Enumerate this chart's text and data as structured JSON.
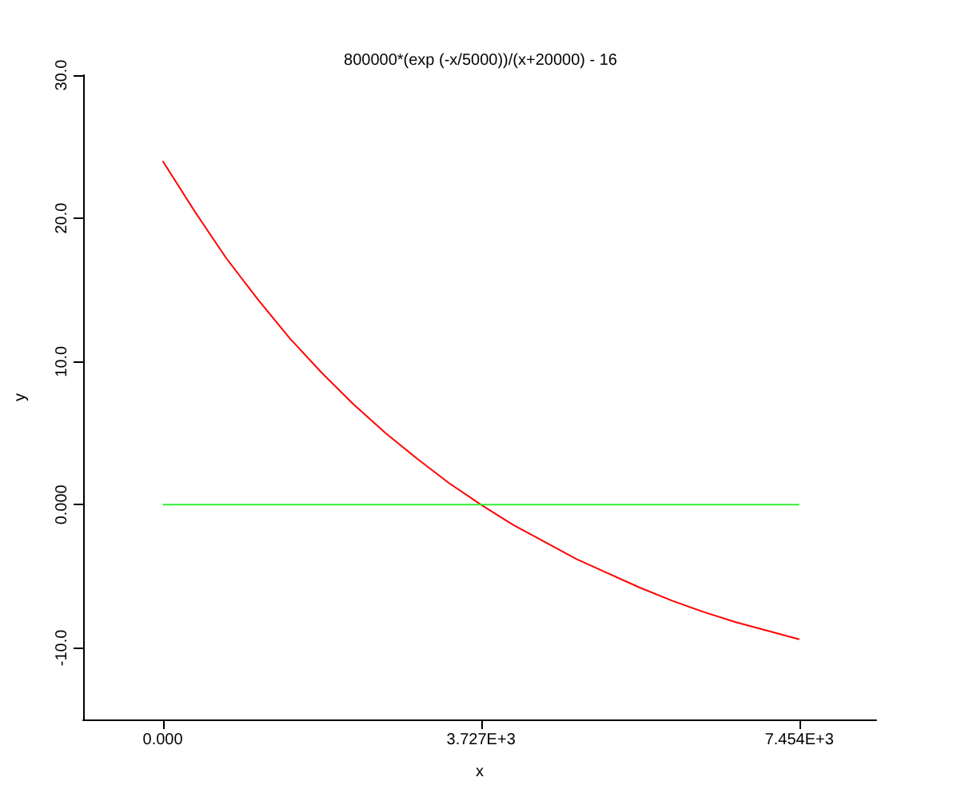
{
  "chart_data": {
    "type": "line",
    "title": "800000*(exp (-x/5000))/(x+20000) - 16",
    "xlabel": "x",
    "ylabel": "y",
    "xlim": [
      -932,
      8355
    ],
    "ylim": [
      -15,
      30
    ],
    "xticks": [
      {
        "value": 0,
        "label": "0.000"
      },
      {
        "value": 3727,
        "label": "3.727E+3"
      },
      {
        "value": 7454,
        "label": "7.454E+3"
      }
    ],
    "yticks": [
      {
        "value": -10,
        "label": "-10.0"
      },
      {
        "value": 0,
        "label": "0.000"
      },
      {
        "value": 10,
        "label": "10.0"
      },
      {
        "value": 20,
        "label": "20.0"
      },
      {
        "value": 30,
        "label": "30.0"
      }
    ],
    "grid": false,
    "marker": "none",
    "line_style": "solid",
    "series": [
      {
        "color": "#ff0000",
        "x": [
          0,
          372.7,
          745.4,
          1118.1,
          1490.8,
          1863.5,
          2236.2,
          2608.9,
          2981.6,
          3354.3,
          3727,
          4099.7,
          4472.4,
          4845.1,
          5217.8,
          5590.5,
          5963.2,
          6335.9,
          6708.6,
          7081.3,
          7454
        ],
        "values": [
          24.0,
          20.5,
          17.2,
          14.3,
          11.6,
          9.2,
          7.0,
          5.0,
          3.2,
          1.5,
          0.0,
          -1.4,
          -2.6,
          -3.8,
          -4.8,
          -5.8,
          -6.7,
          -7.5,
          -8.2,
          -8.8,
          -9.4
        ]
      },
      {
        "color": "#33ee33",
        "x": [
          0,
          7454
        ],
        "values": [
          0,
          0
        ]
      }
    ]
  }
}
